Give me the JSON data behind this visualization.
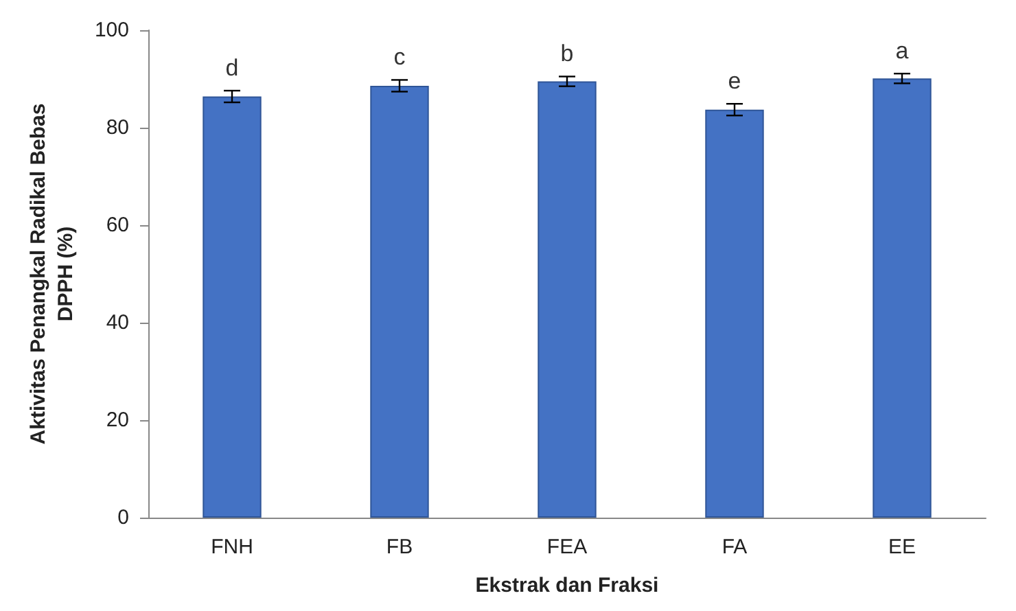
{
  "chart_data": {
    "type": "bar",
    "xlabel": "Ekstrak dan Fraksi",
    "ylabel": "Aktivitas Penangkal Radikal Bebas\nDPPH (%)",
    "categories": [
      "FNH",
      "FB",
      "FEA",
      "FA",
      "EE"
    ],
    "values": [
      86.4,
      88.6,
      89.5,
      83.7,
      90.1
    ],
    "errors": [
      1.2,
      1.2,
      1.0,
      1.2,
      1.0
    ],
    "color": "#4472c4",
    "ylim": [
      0,
      100
    ],
    "yticks": [
      0,
      20,
      40,
      60,
      80,
      100
    ],
    "grid": false,
    "annotations": [
      {
        "text": "d",
        "x": "FNH",
        "y": 86.4
      },
      {
        "text": "c",
        "x": "FB",
        "y": 88.6
      },
      {
        "text": "b",
        "x": "FEA",
        "y": 89.5
      },
      {
        "text": "e",
        "x": "FA",
        "y": 83.7
      },
      {
        "text": "a",
        "x": "EE",
        "y": 90.1
      }
    ]
  }
}
